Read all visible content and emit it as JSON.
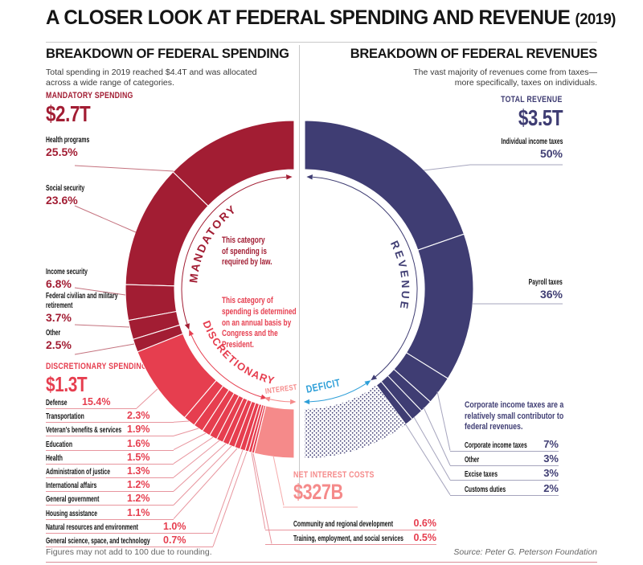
{
  "header": {
    "title": "A CLOSER LOOK AT FEDERAL SPENDING AND REVENUE",
    "year": "(2019)"
  },
  "left_section": {
    "heading": "BREAKDOWN OF FEDERAL SPENDING",
    "subtitle_line1": "Total spending in 2019 reached $4.4T and was allocated",
    "subtitle_line2": "across a wide range of categories."
  },
  "right_section": {
    "heading": "BREAKDOWN OF FEDERAL REVENUES",
    "subtitle_line1": "The vast majority of revenues come from taxes—",
    "subtitle_line2": "more specifically, taxes on individuals.",
    "note_lines": [
      "Corporate income taxes are a",
      "relatively small contributor to",
      "federal revenues."
    ]
  },
  "center_notes": {
    "mandatory_note_lines": [
      "This category",
      "of spending is",
      "required by law."
    ],
    "discretionary_note_lines": [
      "This category of",
      "spending is determined",
      "on an annual basis by",
      "Congress and the",
      "President."
    ]
  },
  "footer": {
    "note": "Figures may not add to 100 due to rounding.",
    "source": "Source: Peter G. Peterson Foundation"
  },
  "chart_data": {
    "type": "donut",
    "layout": "two facing half-rings: left = spending share of $4.4T, right = revenue share of $4.4T with deficit gap",
    "spending": {
      "total": "$4.4T",
      "mandatory": {
        "ring_label": "MANDATORY",
        "heading": "MANDATORY SPENDING",
        "total": "$2.7T",
        "items": [
          {
            "label": "Health programs",
            "pct": 25.5
          },
          {
            "label": "Social security",
            "pct": 23.6
          },
          {
            "label": "Income security",
            "pct": 6.8
          },
          {
            "label": "Federal civilian and military retirement",
            "pct": 3.7
          },
          {
            "label": "Other",
            "pct": 2.5
          }
        ]
      },
      "discretionary": {
        "ring_label": "DISCRETIONARY",
        "heading": "DISCRETIONARY SPENDING",
        "total": "$1.3T",
        "items": [
          {
            "label": "Defense",
            "pct": 15.4
          },
          {
            "label": "Transportation",
            "pct": 2.3
          },
          {
            "label": "Veteran's benefits & services",
            "pct": 1.9
          },
          {
            "label": "Education",
            "pct": 1.6
          },
          {
            "label": "Health",
            "pct": 1.5
          },
          {
            "label": "Administration of justice",
            "pct": 1.3
          },
          {
            "label": "International affairs",
            "pct": 1.2
          },
          {
            "label": "General government",
            "pct": 1.2
          },
          {
            "label": "Housing assistance",
            "pct": 1.1
          },
          {
            "label": "Natural resources and environment",
            "pct": 1.0
          },
          {
            "label": "General science, space, and technology",
            "pct": 0.7
          },
          {
            "label": "Community and regional development",
            "pct": 0.6
          },
          {
            "label": "Training, employment, and social services",
            "pct": 0.5
          }
        ]
      },
      "net_interest": {
        "ring_label": "INTEREST",
        "heading": "NET INTEREST COSTS",
        "total": "$327B",
        "pct_of_total": 7.6
      }
    },
    "revenue": {
      "ring_label": "REVENUE",
      "heading": "TOTAL REVENUE",
      "total": "$3.5T",
      "items": [
        {
          "label": "Individual income taxes",
          "pct": 50
        },
        {
          "label": "Payroll taxes",
          "pct": 36
        },
        {
          "label": "Corporate income taxes",
          "pct": 7
        },
        {
          "label": "Other",
          "pct": 3
        },
        {
          "label": "Excise taxes",
          "pct": 3
        },
        {
          "label": "Customs duties",
          "pct": 2
        }
      ],
      "deficit": {
        "ring_label": "DEFICIT"
      }
    },
    "colors": {
      "mandatory": "#A21D33",
      "discretionary": "#E63E4F",
      "interest": "#F58A8A",
      "revenue": "#3F3D73",
      "deficit_accent": "#2E9FD8"
    }
  }
}
